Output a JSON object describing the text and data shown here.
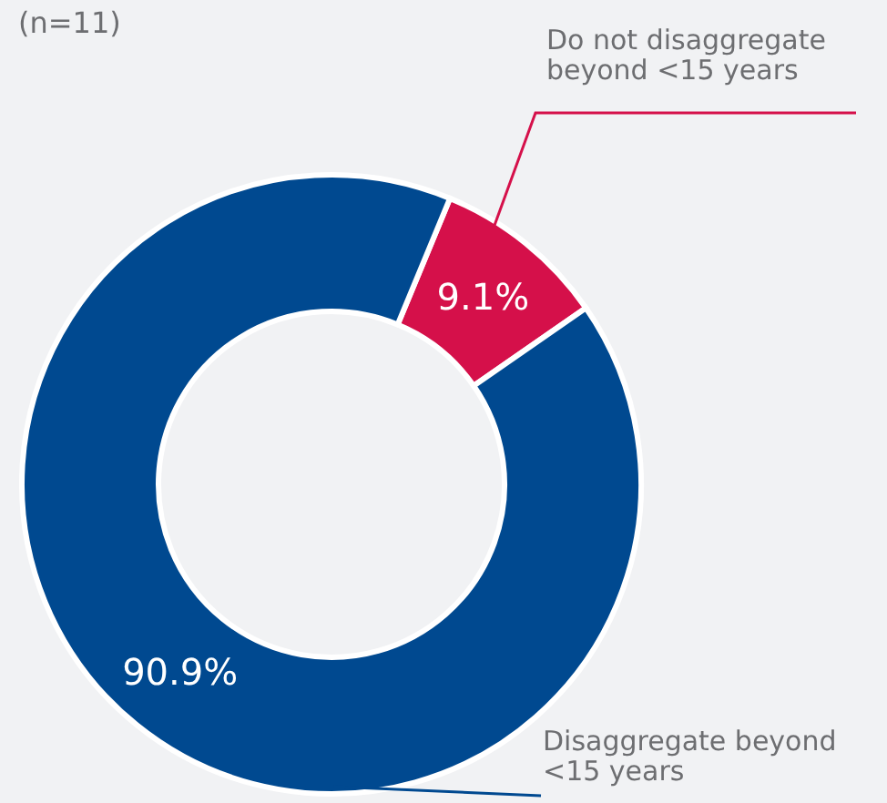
{
  "chart_data": {
    "type": "donut",
    "subtitle": "(n=11)",
    "categories": [
      "Do not disaggregate beyond <15 years",
      "Disaggregate beyond <15 years"
    ],
    "values": [
      9.1,
      90.9
    ],
    "colors": [
      "#d5104a",
      "#004990"
    ],
    "value_labels": [
      "9.1%",
      "90.9%"
    ]
  }
}
